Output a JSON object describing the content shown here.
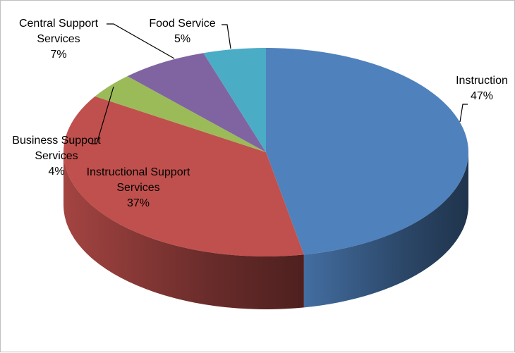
{
  "chart_data": {
    "type": "pie",
    "categories": [
      "Instruction",
      "Instructional Support Services",
      "Business Support Services",
      "Central Support Services",
      "Food Service"
    ],
    "values": [
      47,
      37,
      4,
      7,
      5
    ],
    "value_labels": [
      "47%",
      "37%",
      "4%",
      "7%",
      "5%"
    ],
    "colors": [
      "#4f81bd",
      "#c0504d",
      "#9bbb59",
      "#8064a2",
      "#4bacc6"
    ]
  }
}
